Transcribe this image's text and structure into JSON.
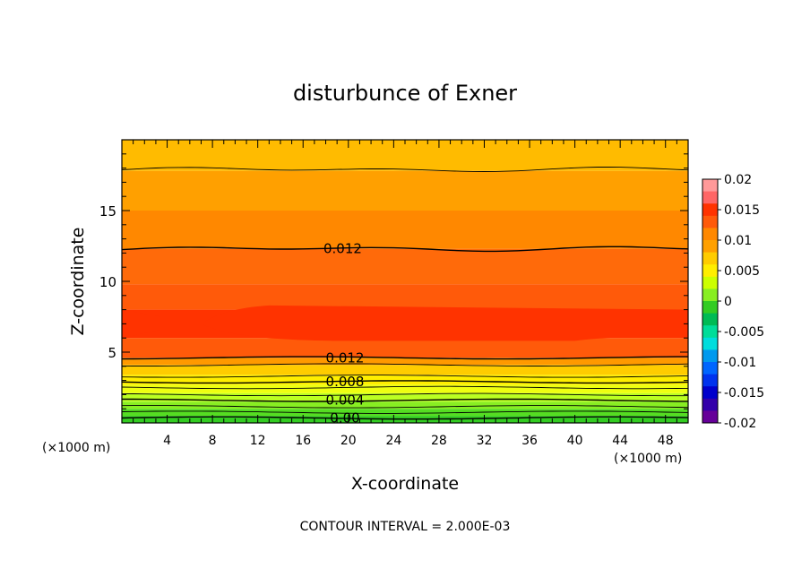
{
  "chart_data": {
    "type": "heatmap",
    "title": "disturbunce of Exner",
    "xlabel": "X-coordinate",
    "ylabel": "Z-coordinate",
    "x_unit_left": "(×1000 m)",
    "x_unit_right": "(×1000 m)",
    "footer": "CONTOUR INTERVAL = 2.000E-03",
    "xlim": [
      0,
      50
    ],
    "ylim": [
      0,
      20
    ],
    "x_ticks": [
      4,
      8,
      12,
      16,
      20,
      24,
      28,
      32,
      36,
      40,
      44,
      48
    ],
    "y_ticks": [
      5,
      10,
      15
    ],
    "contour_interval": 0.002,
    "bands": [
      {
        "z_low": 0.0,
        "z_high": 0.5,
        "color": "#33cc22",
        "value": "0.000 to 0.002"
      },
      {
        "z_low": 0.5,
        "z_high": 1.0,
        "color": "#55dd22",
        "value": "0.002 to 0.004"
      },
      {
        "z_low": 1.0,
        "z_high": 1.5,
        "color": "#88ee22",
        "value": "0.004 to 0.006"
      },
      {
        "z_low": 1.5,
        "z_high": 2.1,
        "color": "#bbff22",
        "value": "0.006 to 0.008"
      },
      {
        "z_low": 2.1,
        "z_high": 2.7,
        "color": "#eeff11",
        "value": "0.008 to 0.010"
      },
      {
        "z_low": 2.7,
        "z_high": 3.4,
        "color": "#ffee00",
        "value": "0.010 to 0.012"
      },
      {
        "z_low": 3.4,
        "z_high": 4.1,
        "color": "#ffcc00",
        "value": "0.012 to 0.014"
      },
      {
        "z_low": 4.1,
        "z_high": 4.6,
        "color": "#ff9900",
        "value": "0.014"
      },
      {
        "z_low": 4.6,
        "z_high": 6.0,
        "color": "#ff5a0a",
        "value": "0.014 to 0.016"
      },
      {
        "z_low": 6.0,
        "z_high": 8.0,
        "color": "#ff3300",
        "value": "0.016+"
      },
      {
        "z_low": 8.0,
        "z_high": 9.8,
        "color": "#ff5a0a",
        "value": "0.014 to 0.016"
      },
      {
        "z_low": 9.8,
        "z_high": 12.3,
        "color": "#ff6a0a",
        "value": "0.012 to 0.014"
      },
      {
        "z_low": 12.3,
        "z_high": 15.0,
        "color": "#ff8800",
        "value": "0.010 to 0.012"
      },
      {
        "z_low": 15.0,
        "z_high": 17.8,
        "color": "#ffa000",
        "value": "0.008 to 0.010"
      },
      {
        "z_low": 17.8,
        "z_high": 20.0,
        "color": "#ffbb00",
        "value": "0.006 to 0.008"
      }
    ],
    "contour_lines": [
      {
        "z": 0.35,
        "label": "0.00"
      },
      {
        "z": 0.75,
        "label": ""
      },
      {
        "z": 1.15,
        "label": ""
      },
      {
        "z": 1.6,
        "label": "0.004"
      },
      {
        "z": 2.0,
        "label": ""
      },
      {
        "z": 2.5,
        "label": ""
      },
      {
        "z": 2.9,
        "label": "0.008"
      },
      {
        "z": 3.3,
        "label": ""
      },
      {
        "z": 4.1,
        "label": ""
      },
      {
        "z": 4.6,
        "label": "0.012"
      },
      {
        "z": 12.3,
        "label": "0.012"
      },
      {
        "z": 17.9,
        "label": ""
      }
    ],
    "colorbar": {
      "labels": [
        "0.02",
        "0.015",
        "0.01",
        "0.005",
        "0",
        "-0.005",
        "-0.01",
        "-0.015",
        "-0.02"
      ],
      "colors": [
        "#ff9999",
        "#ff6666",
        "#ff3300",
        "#ff5a0a",
        "#ff8800",
        "#ffa000",
        "#ffcc00",
        "#ffee00",
        "#ccff00",
        "#88ee22",
        "#33cc22",
        "#00bb55",
        "#00dd99",
        "#00dddd",
        "#0099ee",
        "#0066ff",
        "#0033ee",
        "#0000cc",
        "#3300aa",
        "#660099"
      ]
    }
  }
}
